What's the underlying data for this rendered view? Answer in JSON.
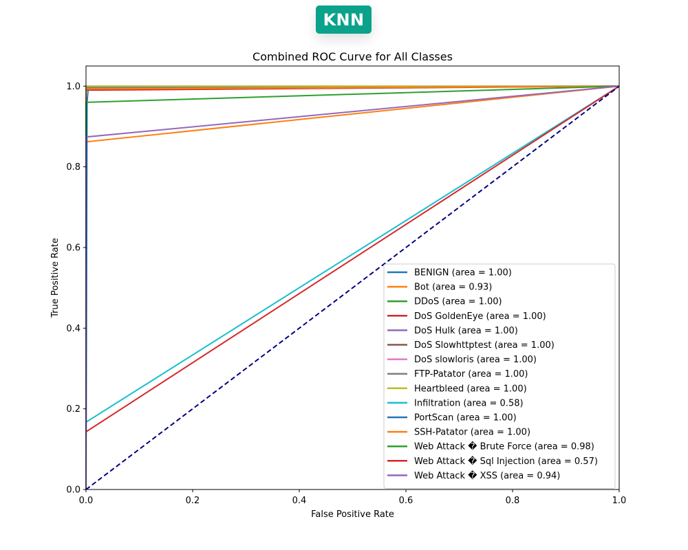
{
  "badge": {
    "label": "KNN",
    "color": "#0aa28b"
  },
  "chart_data": {
    "type": "line",
    "title": "Combined ROC Curve for All Classes",
    "xlabel": "False Positive Rate",
    "ylabel": "True Positive Rate",
    "xlim": [
      0.0,
      1.0
    ],
    "ylim": [
      0.0,
      1.05
    ],
    "xticks": [
      "0.0",
      "0.2",
      "0.4",
      "0.6",
      "0.8",
      "1.0"
    ],
    "yticks": [
      "0.0",
      "0.2",
      "0.4",
      "0.6",
      "0.8",
      "1.0"
    ],
    "grid": false,
    "legend_position": "lower-right",
    "reference_line": {
      "x": [
        0,
        1
      ],
      "y": [
        0,
        1
      ],
      "color": "#000080",
      "style": "dashed"
    },
    "series": [
      {
        "name": "BENIGN (area = 1.00)",
        "color": "#1f77b4",
        "x": [
          0,
          0.0,
          1
        ],
        "y": [
          0,
          1.0,
          1
        ]
      },
      {
        "name": "Bot (area = 0.93)",
        "color": "#ff7f0e",
        "x": [
          0,
          0.0,
          1
        ],
        "y": [
          0,
          0.862,
          1
        ]
      },
      {
        "name": "DDoS (area = 1.00)",
        "color": "#2ca02c",
        "x": [
          0,
          0.0,
          1
        ],
        "y": [
          0,
          0.998,
          1
        ]
      },
      {
        "name": "DoS GoldenEye (area = 1.00)",
        "color": "#d62728",
        "x": [
          0,
          0.0,
          1
        ],
        "y": [
          0,
          0.99,
          1
        ]
      },
      {
        "name": "DoS Hulk (area = 1.00)",
        "color": "#9467bd",
        "x": [
          0,
          0.0,
          1
        ],
        "y": [
          0,
          0.995,
          1
        ]
      },
      {
        "name": "DoS Slowhttptest (area = 1.00)",
        "color": "#8c564b",
        "x": [
          0,
          0.0,
          1
        ],
        "y": [
          0,
          0.993,
          1
        ]
      },
      {
        "name": "DoS slowloris (area = 1.00)",
        "color": "#e377c2",
        "x": [
          0,
          0.0,
          1
        ],
        "y": [
          0,
          0.993,
          1
        ]
      },
      {
        "name": "FTP-Patator (area = 1.00)",
        "color": "#7f7f7f",
        "x": [
          0,
          0.0,
          1
        ],
        "y": [
          0,
          0.997,
          1
        ]
      },
      {
        "name": "Heartbleed (area = 1.00)",
        "color": "#bcbd22",
        "x": [
          0,
          0.0,
          1
        ],
        "y": [
          0,
          1.0,
          1
        ]
      },
      {
        "name": "Infiltration (area = 0.58)",
        "color": "#17becf",
        "x": [
          0,
          0.0,
          1
        ],
        "y": [
          0,
          0.167,
          1
        ]
      },
      {
        "name": "PortScan (area = 1.00)",
        "color": "#1f77b4",
        "x": [
          0,
          0.002,
          0.004,
          1
        ],
        "y": [
          0,
          0.96,
          0.993,
          1
        ]
      },
      {
        "name": "SSH-Patator (area = 1.00)",
        "color": "#ff7f0e",
        "x": [
          0,
          0.0,
          1
        ],
        "y": [
          0,
          0.993,
          1
        ]
      },
      {
        "name": "Web Attack � Brute Force (area = 0.98)",
        "color": "#2ca02c",
        "x": [
          0,
          0.0,
          1
        ],
        "y": [
          0,
          0.96,
          1
        ]
      },
      {
        "name": "Web Attack � Sql Injection (area = 0.57)",
        "color": "#d62728",
        "x": [
          0,
          0.0,
          1
        ],
        "y": [
          0,
          0.143,
          1
        ]
      },
      {
        "name": "Web Attack � XSS (area = 0.94)",
        "color": "#9467bd",
        "x": [
          0,
          0.0,
          1
        ],
        "y": [
          0,
          0.874,
          1
        ]
      }
    ]
  }
}
